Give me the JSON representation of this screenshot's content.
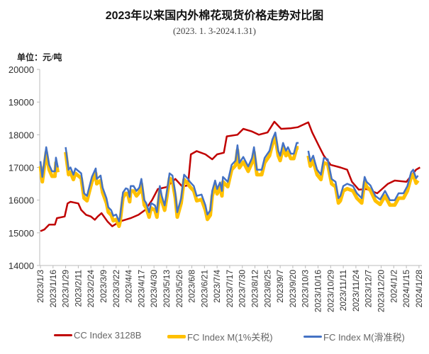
{
  "chart_data": {
    "type": "line",
    "title": "2023年以来国内外棉花现货价格走势对比图",
    "subtitle": "(2023. 1. 3-2024.1.31)",
    "ylabel": "单位：元/吨",
    "ylim": [
      14000,
      20000
    ],
    "yticks": [
      "14000",
      "15000",
      "16000",
      "17000",
      "18000",
      "19000",
      "20000"
    ],
    "xlim": [
      "2023/1/3",
      "2024/1/31"
    ],
    "xticks": [
      "2023/1/3",
      "2023/1/16",
      "2023/1/29",
      "2023/2/11",
      "2023/2/24",
      "2023/3/9",
      "2023/3/22",
      "2023/4/4",
      "2023/4/17",
      "2023/4/30",
      "2023/5/13",
      "2023/5/26",
      "2023/6/8",
      "2023/6/21",
      "2023/7/4",
      "2023/7/17",
      "2023/7/30",
      "2023/8/12",
      "2023/8/25",
      "2023/9/7",
      "2023/9/20",
      "2023/10/3",
      "2023/10/16",
      "2023/10/29",
      "2023/11/11",
      "2023/11/24",
      "2023/12/7",
      "2023/12/20",
      "2024/1/2",
      "2024/1/15",
      "2024/1/28"
    ],
    "grid": false,
    "legend_position": "bottom",
    "cc_dates": [
      "2023/1/3",
      "2023/1/7",
      "2023/1/12",
      "2023/1/18",
      "2023/1/20",
      "2023/1/28",
      "2023/1/31",
      "2023/2/3",
      "2023/2/11",
      "2023/2/14",
      "2023/2/19",
      "2023/2/24",
      "2023/2/28",
      "2023/3/3",
      "2023/3/7",
      "2023/3/13",
      "2023/3/18",
      "2023/3/26",
      "2023/4/6",
      "2023/4/14",
      "2023/4/21",
      "2023/4/28",
      "2023/5/4",
      "2023/5/13",
      "2023/5/22",
      "2023/5/29",
      "2023/6/4",
      "2023/6/7",
      "2023/6/13",
      "2023/6/22",
      "2023/6/29",
      "2023/7/4",
      "2023/7/11",
      "2023/7/14",
      "2023/7/25",
      "2023/7/31",
      "2023/8/9",
      "2023/8/16",
      "2023/8/25",
      "2023/9/1",
      "2023/9/8",
      "2023/9/18",
      "2023/9/25",
      "2023/10/6",
      "2023/10/10",
      "2023/10/17",
      "2023/10/22",
      "2023/10/29",
      "2023/11/8",
      "2023/11/15",
      "2023/11/20",
      "2023/11/27",
      "2023/12/5",
      "2023/12/16",
      "2023/12/27",
      "2024/1/3",
      "2024/1/15",
      "2024/1/25",
      "2024/1/29"
    ],
    "fc_dates": [
      "2023/1/3",
      "2023/1/5",
      "2023/1/9",
      "2023/1/12",
      "2023/1/15",
      "2023/1/18",
      "2023/1/19",
      "2023/1/21",
      "2023/1/25",
      "2023/1/29",
      "2023/2/1",
      "2023/2/3",
      "2023/2/6",
      "2023/2/8",
      "2023/2/14",
      "2023/2/17",
      "2023/2/20",
      "2023/2/25",
      "2023/3/1",
      "2023/3/2",
      "2023/3/6",
      "2023/3/8",
      "2023/3/12",
      "2023/3/14",
      "2023/3/17",
      "2023/3/19",
      "2023/3/22",
      "2023/3/25",
      "2023/3/26",
      "2023/3/29",
      "2023/4/1",
      "2023/4/3",
      "2023/4/5",
      "2023/4/6",
      "2023/4/9",
      "2023/4/12",
      "2023/4/15",
      "2023/4/17",
      "2023/4/20",
      "2023/4/22",
      "2023/4/25",
      "2023/4/27",
      "2023/5/1",
      "2023/5/3",
      "2023/5/6",
      "2023/5/8",
      "2023/5/11",
      "2023/5/13",
      "2023/5/16",
      "2023/5/19",
      "2023/5/22",
      "2023/5/24",
      "2023/5/28",
      "2023/5/31",
      "2023/6/4",
      "2023/6/6",
      "2023/6/10",
      "2023/6/13",
      "2023/6/18",
      "2023/6/22",
      "2023/6/24",
      "2023/6/27",
      "2023/6/29",
      "2023/7/2",
      "2023/7/4",
      "2023/7/7",
      "2023/7/9",
      "2023/7/10",
      "2023/7/15",
      "2023/7/19",
      "2023/7/23",
      "2023/7/25",
      "2023/7/27",
      "2023/7/31",
      "2023/8/5",
      "2023/8/9",
      "2023/8/11",
      "2023/8/14",
      "2023/8/19",
      "2023/8/22",
      "2023/8/27",
      "2023/8/30",
      "2023/9/2",
      "2023/9/5",
      "2023/9/7",
      "2023/9/10",
      "2023/9/13",
      "2023/9/15",
      "2023/9/18",
      "2023/9/21",
      "2023/9/24",
      "2023/9/26",
      "2023/10/1",
      "2023/10/6",
      "2023/10/8",
      "2023/10/11",
      "2023/10/13",
      "2023/10/15",
      "2023/10/19",
      "2023/10/22",
      "2023/10/26",
      "2023/10/30",
      "2023/11/3",
      "2023/11/6",
      "2023/11/8",
      "2023/11/11",
      "2023/11/15",
      "2023/11/21",
      "2023/11/25",
      "2023/11/30",
      "2023/12/3",
      "2023/12/5",
      "2023/12/9",
      "2023/12/14",
      "2023/12/19",
      "2023/12/24",
      "2023/12/29",
      "2024/1/3",
      "2024/1/7",
      "2024/1/12",
      "2024/1/16",
      "2024/1/20",
      "2024/1/22",
      "2024/1/25",
      "2024/1/27"
    ],
    "series": [
      {
        "name": "CC Index 3128B",
        "color": "#C00000",
        "x": "cc_dates",
        "values": [
          15050,
          15100,
          15250,
          15250,
          15450,
          15500,
          15900,
          15950,
          15900,
          15700,
          15550,
          15500,
          15400,
          15500,
          15600,
          15350,
          15200,
          15350,
          15450,
          15550,
          15700,
          16000,
          16340,
          16400,
          16650,
          16420,
          16450,
          17400,
          17500,
          17400,
          17250,
          17400,
          17450,
          17950,
          18000,
          18180,
          18100,
          18000,
          18070,
          18400,
          18180,
          18200,
          18230,
          18380,
          18070,
          17650,
          17360,
          17080,
          17000,
          16930,
          16560,
          16320,
          16340,
          16210,
          16500,
          16600,
          16560,
          16930,
          17000
        ]
      },
      {
        "name": "FC Index M(1%关税)",
        "color": "#FFC000",
        "x": "fc_dates",
        "values": [
          17040,
          16560,
          17470,
          16930,
          16730,
          16730,
          17150,
          16850,
          null,
          17470,
          16780,
          16850,
          16630,
          16820,
          16670,
          16060,
          15980,
          16560,
          16820,
          16500,
          16600,
          16240,
          15910,
          15630,
          15540,
          15370,
          15410,
          15200,
          15330,
          16080,
          16210,
          16190,
          15950,
          16280,
          16280,
          16130,
          16240,
          16500,
          15850,
          15760,
          15480,
          15760,
          15690,
          15480,
          16280,
          15980,
          15690,
          16060,
          16670,
          16600,
          16060,
          15480,
          15910,
          16630,
          16500,
          16410,
          16280,
          15980,
          16020,
          15690,
          15410,
          15540,
          16130,
          16450,
          16190,
          16390,
          16130,
          16560,
          16410,
          16930,
          17060,
          17530,
          16990,
          17170,
          16880,
          17140,
          17470,
          16780,
          16780,
          17140,
          17360,
          17710,
          17920,
          17360,
          17210,
          17600,
          17360,
          17470,
          17270,
          17270,
          17600,
          17600,
          null,
          17360,
          17040,
          17210,
          16990,
          16780,
          16630,
          17140,
          17100,
          16500,
          16410,
          15910,
          15980,
          16280,
          16350,
          16280,
          16060,
          15910,
          16560,
          16410,
          16300,
          15980,
          15870,
          16130,
          15850,
          15850,
          16060,
          16060,
          16280,
          16710,
          16780,
          16520,
          16600
        ]
      },
      {
        "name": "FC Index M(滑准税)",
        "color": "#4472C4",
        "x": "fc_dates",
        "values": [
          17190,
          16710,
          17620,
          17080,
          16880,
          16880,
          17300,
          17000,
          null,
          17620,
          16930,
          17000,
          16780,
          16970,
          16820,
          16210,
          16130,
          16710,
          16970,
          16650,
          16750,
          16390,
          16060,
          15780,
          15690,
          15520,
          15560,
          15350,
          15480,
          16230,
          16360,
          16340,
          16100,
          16430,
          16430,
          16280,
          16390,
          16650,
          16000,
          15910,
          15630,
          15910,
          15840,
          15630,
          16430,
          16130,
          15840,
          16210,
          16820,
          16750,
          16210,
          15630,
          16060,
          16780,
          16650,
          16560,
          16430,
          16130,
          16170,
          15840,
          15560,
          15690,
          16280,
          16600,
          16340,
          16540,
          16280,
          16710,
          16560,
          17080,
          17210,
          17680,
          17140,
          17320,
          17030,
          17290,
          17620,
          16930,
          16930,
          17290,
          17510,
          17860,
          18070,
          17510,
          17360,
          17750,
          17510,
          17620,
          17420,
          17420,
          17750,
          17750,
          null,
          17510,
          17190,
          17360,
          17140,
          16930,
          16780,
          17290,
          17250,
          16650,
          16560,
          16060,
          16130,
          16430,
          16500,
          16430,
          16210,
          16060,
          16710,
          16560,
          16450,
          16130,
          16020,
          16280,
          16000,
          16000,
          16210,
          16210,
          16430,
          16860,
          16930,
          16670,
          16750
        ]
      }
    ]
  }
}
